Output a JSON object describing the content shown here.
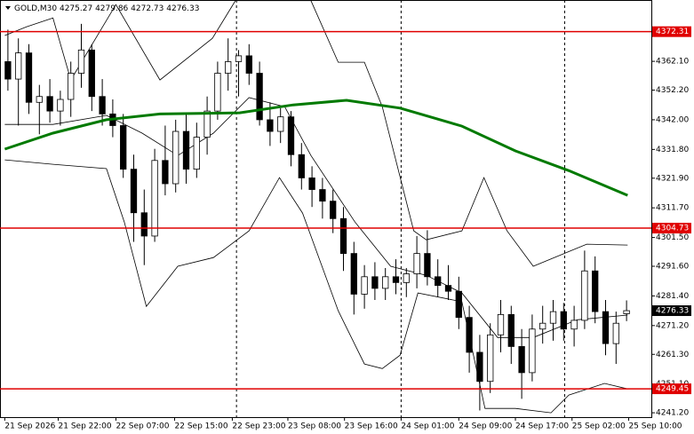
{
  "chart_data": {
    "type": "candlestick",
    "symbol": "GOLD,M30",
    "candle_color": "#000000",
    "candles": [
      [
        4362,
        4373,
        4352,
        4356
      ],
      [
        4356,
        4370,
        4340,
        4365
      ],
      [
        4365,
        4368,
        4344,
        4348
      ],
      [
        4348,
        4354,
        4337,
        4350
      ],
      [
        4350,
        4356,
        4341,
        4345
      ],
      [
        4345,
        4352,
        4340,
        4349
      ],
      [
        4349,
        4362,
        4343,
        4358
      ],
      [
        4358,
        4375,
        4353,
        4366
      ],
      [
        4366,
        4368,
        4345,
        4350
      ],
      [
        4350,
        4356,
        4340,
        4344
      ],
      [
        4344,
        4349,
        4336,
        4340
      ],
      [
        4340,
        4344,
        4322,
        4325
      ],
      [
        4325,
        4330,
        4300,
        4310
      ],
      [
        4310,
        4318,
        4292,
        4302
      ],
      [
        4302,
        4332,
        4300,
        4328
      ],
      [
        4328,
        4340,
        4316,
        4320
      ],
      [
        4320,
        4342,
        4317,
        4338
      ],
      [
        4338,
        4344,
        4320,
        4325
      ],
      [
        4325,
        4341,
        4322,
        4336
      ],
      [
        4336,
        4350,
        4330,
        4345
      ],
      [
        4345,
        4362,
        4342,
        4358
      ],
      [
        4358,
        4370,
        4352,
        4362
      ],
      [
        4362,
        4366,
        4350,
        4364
      ],
      [
        4364,
        4368,
        4354,
        4358
      ],
      [
        4358,
        4362,
        4340,
        4342
      ],
      [
        4342,
        4348,
        4333,
        4338
      ],
      [
        4338,
        4346,
        4334,
        4343
      ],
      [
        4343,
        4345,
        4326,
        4330
      ],
      [
        4330,
        4334,
        4318,
        4322
      ],
      [
        4322,
        4326,
        4312,
        4318
      ],
      [
        4318,
        4322,
        4308,
        4314
      ],
      [
        4314,
        4318,
        4303,
        4308
      ],
      [
        4308,
        4312,
        4290,
        4296
      ],
      [
        4296,
        4300,
        4275,
        4282
      ],
      [
        4282,
        4292,
        4277,
        4288
      ],
      [
        4288,
        4293,
        4280,
        4284
      ],
      [
        4284,
        4291,
        4280,
        4288
      ],
      [
        4288,
        4294,
        4282,
        4286
      ],
      [
        4286,
        4291,
        4281,
        4289
      ],
      [
        4289,
        4302,
        4284,
        4296
      ],
      [
        4296,
        4304,
        4285,
        4288
      ],
      [
        4288,
        4294,
        4281,
        4285
      ],
      [
        4285,
        4292,
        4280,
        4283
      ],
      [
        4283,
        4288,
        4270,
        4274
      ],
      [
        4274,
        4278,
        4255,
        4262
      ],
      [
        4262,
        4268,
        4242,
        4252
      ],
      [
        4252,
        4272,
        4248,
        4268
      ],
      [
        4268,
        4280,
        4262,
        4275
      ],
      [
        4275,
        4278,
        4258,
        4264
      ],
      [
        4264,
        4270,
        4246,
        4255
      ],
      [
        4255,
        4275,
        4252,
        4270
      ],
      [
        4270,
        4278,
        4265,
        4272
      ],
      [
        4272,
        4280,
        4266,
        4276
      ],
      [
        4276,
        4279,
        4266,
        4270
      ],
      [
        4270,
        4278,
        4264,
        4273
      ],
      [
        4273,
        4297,
        4270,
        4290
      ],
      [
        4290,
        4295,
        4272,
        4276
      ],
      [
        4276,
        4280,
        4261,
        4265
      ],
      [
        4265,
        4276,
        4258,
        4272
      ],
      [
        4275.27,
        4279.86,
        4272.73,
        4276.33
      ]
    ],
    "xlim": [
      0,
      60
    ],
    "ylim": [
      4239.7,
      4383.2
    ],
    "yticks": [
      {
        "value": 4362.1,
        "label": "4362.10"
      },
      {
        "value": 4352.2,
        "label": "4352.20"
      },
      {
        "value": 4342,
        "label": "4342.00"
      },
      {
        "value": 4331.8,
        "label": "4331.80"
      },
      {
        "value": 4321.9,
        "label": "4321.90"
      },
      {
        "value": 4311.7,
        "label": "4311.70"
      },
      {
        "value": 4301.5,
        "label": "4301.50"
      },
      {
        "value": 4291.6,
        "label": "4291.60"
      },
      {
        "value": 4281.4,
        "label": "4281.40"
      },
      {
        "value": 4271.2,
        "label": "4271.20"
      },
      {
        "value": 4261.3,
        "label": "4261.30"
      },
      {
        "value": 4251.1,
        "label": "4251.10"
      },
      {
        "value": 4241.2,
        "label": "4241.20"
      }
    ],
    "xticks": [
      {
        "value": 0.2,
        "label": "21 Sep 2026"
      },
      {
        "value": 5.3,
        "label": "21 Sep 22:00"
      },
      {
        "value": 10.8,
        "label": "22 Sep 07:00"
      },
      {
        "value": 16.4,
        "label": "22 Sep 15:00"
      },
      {
        "value": 21.9,
        "label": "22 Sep 23:00"
      },
      {
        "value": 27.2,
        "label": "23 Sep 08:00"
      },
      {
        "value": 32.6,
        "label": "23 Sep 16:00"
      },
      {
        "value": 38,
        "label": "24 Sep 01:00"
      },
      {
        "value": 43.5,
        "label": "24 Sep 09:00"
      },
      {
        "value": 48.9,
        "label": "24 Sep 17:00"
      },
      {
        "value": 54.3,
        "label": "25 Sep 02:00"
      },
      {
        "value": 59.7,
        "label": "25 Sep 10:00"
      }
    ],
    "vlines": [
      22.3,
      38,
      53.6
    ],
    "levels": {
      "color": "#e00000",
      "values": [
        4372.31,
        4304.73,
        4249.45
      ]
    },
    "moving_average": {
      "color": "#007a00",
      "x": [
        0.2,
        4.8,
        9.9,
        15,
        22.6,
        27.7,
        32.8,
        37.9,
        43.8,
        48.9,
        54,
        59.6
      ],
      "values": [
        4331.9,
        4337.4,
        4342,
        4344,
        4344.4,
        4347.1,
        4348.7,
        4346,
        4339.8,
        4331.3,
        4324.5,
        4316
      ]
    },
    "bands": {
      "color": "#000000",
      "upper": {
        "x": [
          0.2,
          2.3,
          4.8,
          6.5,
          10.8,
          15,
          20,
          22.2,
          29.4,
          32,
          34.5,
          36.2,
          39.2,
          40.4,
          43.8,
          45.9,
          48.1,
          50.6,
          55.7,
          59.6
        ],
        "values": [
          4371,
          4374,
          4377,
          4355.7,
          4381.6,
          4355.7,
          4370,
          4383,
          4383,
          4361.8,
          4361.8,
          4346.5,
          4303.8,
          4300.7,
          4303.8,
          4322.1,
          4303.8,
          4291.6,
          4299.2,
          4298.9
        ]
      },
      "middle": {
        "x": [
          0.2,
          4.8,
          9.9,
          13.3,
          16.7,
          20.1,
          23.5,
          26.9,
          29.4,
          33.6,
          37,
          40.4,
          43.8,
          47.2,
          50.6,
          54.8,
          59.6
        ],
        "values": [
          4340.4,
          4340.4,
          4343.5,
          4337.4,
          4329.7,
          4337.4,
          4349.6,
          4346.5,
          4329.7,
          4306.8,
          4291.6,
          4288.5,
          4282.4,
          4267.1,
          4267.1,
          4273.2,
          4274.8
        ]
      },
      "lower": {
        "x": [
          0.2,
          4.8,
          9.9,
          11.6,
          13.7,
          16.7,
          20.1,
          23.5,
          26.4,
          28.6,
          32,
          34.5,
          36.2,
          37.9,
          39.6,
          43.8,
          46,
          48.9,
          52.3,
          54,
          57.4,
          59.6
        ],
        "values": [
          4328.2,
          4326.7,
          4325.2,
          4306.8,
          4277.8,
          4291.6,
          4294.6,
          4303.8,
          4322.1,
          4309.9,
          4276.3,
          4258,
          4256.4,
          4261,
          4282.4,
          4279.4,
          4242.7,
          4242.7,
          4241.2,
          4247.3,
          4251.3,
          4249.4
        ]
      }
    }
  }
}
